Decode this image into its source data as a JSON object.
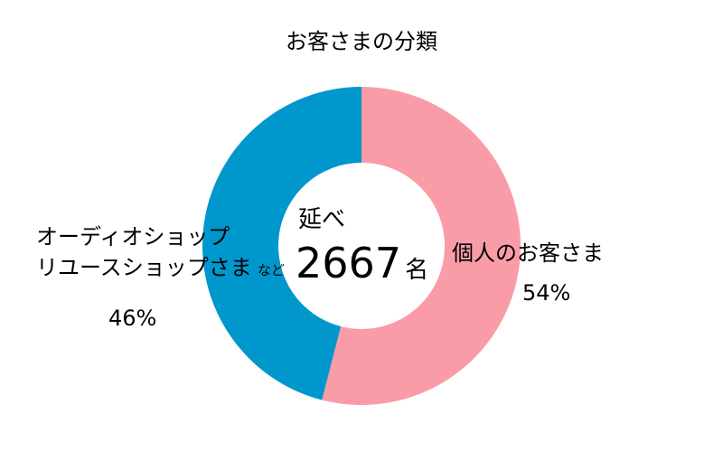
{
  "chart_data": {
    "type": "pie",
    "style": "donut",
    "title": "お客さまの分類",
    "center_label_top": "延べ",
    "center_total": "2667",
    "center_unit": "名",
    "slices": [
      {
        "label": "個人のお客さま",
        "value": 54,
        "value_label": "54%",
        "color": "#f99ca8"
      },
      {
        "label_line1": "オーディオショップ",
        "label_line2": "リユースショップさま",
        "label_suffix": "など",
        "value": 46,
        "value_label": "46%",
        "color": "#0097cc"
      }
    ],
    "legend": "none"
  }
}
